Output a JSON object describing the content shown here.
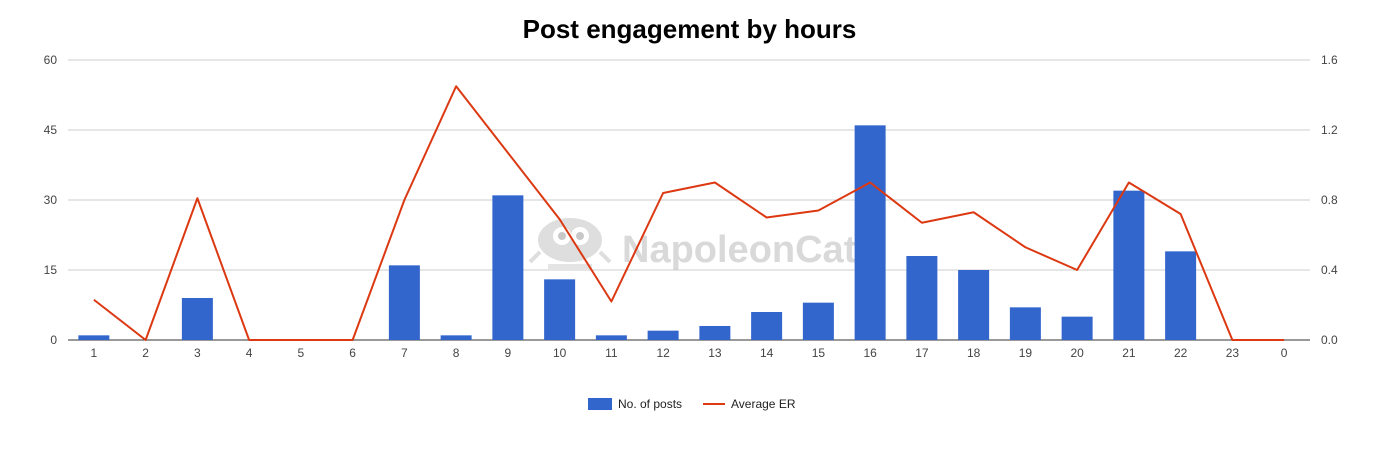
{
  "chart_data": {
    "type": "bar",
    "title": "Post engagement by hours",
    "categories": [
      "1",
      "2",
      "3",
      "4",
      "5",
      "6",
      "7",
      "8",
      "9",
      "10",
      "11",
      "12",
      "13",
      "14",
      "15",
      "16",
      "17",
      "18",
      "19",
      "20",
      "21",
      "22",
      "23",
      "0"
    ],
    "series": [
      {
        "name": "No. of posts",
        "type": "bar",
        "axis": "left",
        "color": "#3366cc",
        "values": [
          1,
          0,
          9,
          0,
          0,
          0,
          16,
          1,
          31,
          13,
          1,
          2,
          3,
          6,
          8,
          46,
          18,
          15,
          7,
          5,
          32,
          19,
          0,
          0
        ]
      },
      {
        "name": "Average ER",
        "type": "line",
        "axis": "right",
        "color": "#dc3912",
        "values": [
          0.23,
          0,
          0.81,
          0,
          0,
          0,
          0.8,
          1.45,
          1.07,
          0.69,
          0.22,
          0.84,
          0.9,
          0.7,
          0.74,
          0.9,
          0.67,
          0.73,
          0.53,
          0.4,
          0.9,
          0.72,
          0,
          0
        ]
      }
    ],
    "y_left": {
      "ylim": [
        0,
        60
      ],
      "ticks": [
        "60",
        "45",
        "30",
        "15",
        "0"
      ]
    },
    "y_right": {
      "ylim": [
        0,
        1.6
      ],
      "ticks": [
        "1.6",
        "1.2",
        "0.8",
        "0.4",
        "0.0"
      ]
    },
    "grid": true,
    "legend": {
      "position": "bottom"
    }
  },
  "watermark": {
    "text": "NapoleonCat."
  }
}
